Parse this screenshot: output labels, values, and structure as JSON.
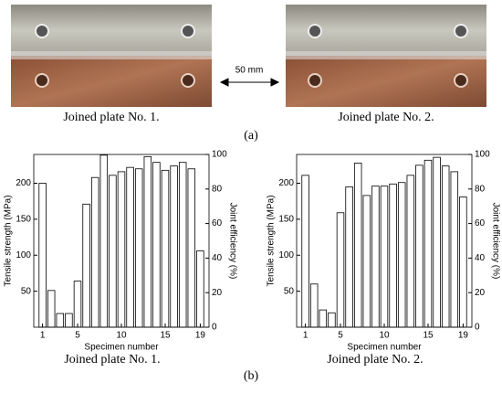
{
  "figure": {
    "panel_a": {
      "captions": [
        "Joined plate No. 1.",
        "Joined plate No. 2."
      ],
      "scale_label": "50 mm",
      "label": "(a)"
    },
    "panel_b_label": "(b)"
  },
  "chart_data": [
    {
      "type": "bar",
      "caption": "Joined plate No. 1.",
      "xlabel": "Specimen number",
      "ylabel": "Tensile strength (MPa)",
      "y2label": "Joint efficiency (%)",
      "x": [
        1,
        2,
        3,
        4,
        5,
        6,
        7,
        8,
        9,
        10,
        11,
        12,
        13,
        14,
        15,
        16,
        17,
        18,
        19
      ],
      "values": [
        200,
        51,
        19,
        19,
        64,
        171,
        208,
        239,
        211,
        216,
        222,
        220,
        237,
        229,
        218,
        224,
        229,
        220,
        106
      ],
      "color": "#ffffff",
      "xlim": [
        0,
        20
      ],
      "xticks": [
        1,
        5,
        10,
        15,
        19
      ],
      "ylim": [
        0,
        240
      ],
      "yticks": [
        50,
        100,
        150,
        200
      ],
      "y2lim": [
        0,
        100
      ],
      "y2ticks": [
        0,
        20,
        40,
        60,
        80,
        100
      ]
    },
    {
      "type": "bar",
      "caption": "Joined plate No. 2.",
      "xlabel": "Specimen number",
      "ylabel": "Tensile strength (MPa)",
      "y2label": "Joint efficiency (%)",
      "x": [
        1,
        2,
        3,
        4,
        5,
        6,
        7,
        8,
        9,
        10,
        11,
        12,
        13,
        14,
        15,
        16,
        17,
        18,
        19
      ],
      "values": [
        211,
        60,
        24,
        20,
        159,
        195,
        228,
        183,
        196,
        196,
        199,
        201,
        211,
        225,
        232,
        236,
        224,
        216,
        181
      ],
      "color": "#ffffff",
      "xlim": [
        0,
        20
      ],
      "xticks": [
        1,
        5,
        10,
        15,
        19
      ],
      "ylim": [
        0,
        240
      ],
      "yticks": [
        50,
        100,
        150,
        200
      ],
      "y2lim": [
        0,
        100
      ],
      "y2ticks": [
        0,
        20,
        40,
        60,
        80,
        100
      ]
    }
  ]
}
